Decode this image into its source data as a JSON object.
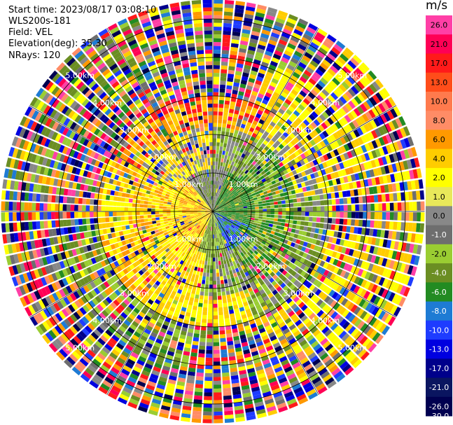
{
  "info": {
    "start_time": "Start time: 2023/08/17 03:08:10",
    "instrument": "WLS200s-181",
    "field": "Field: VEL",
    "elevation": "Elevation(deg): 35.30",
    "nrays": "NRays: 120"
  },
  "colorbar": {
    "unit": "m/s",
    "labels": [
      "26.0",
      "21.0",
      "17.0",
      "13.0",
      "10.0",
      "8.0",
      "6.0",
      "4.0",
      "2.0",
      "1.0",
      "0.0",
      "-1.0",
      "-2.0",
      "-4.0",
      "-6.0",
      "-8.0",
      "-10.0",
      "-13.0",
      "-17.0",
      "-21.0",
      "-26.0",
      "-30.0"
    ],
    "colors": [
      "#ff3fa6",
      "#ff0055",
      "#ff1a1a",
      "#ff4d1a",
      "#ff7a4d",
      "#ff8c66",
      "#ff9900",
      "#ffcc00",
      "#ffff00",
      "#e8e85a",
      "#888888",
      "#6e6e6e",
      "#9acd32",
      "#6b8e23",
      "#228b22",
      "#1e7bd4",
      "#1e3cff",
      "#0000e0",
      "#00008b",
      "#0a1560",
      "#000050"
    ]
  },
  "chart_data": {
    "type": "heatmap",
    "coordinate_system": "polar (PPI scan)",
    "field": "VEL",
    "units": "m/s",
    "nrays": 120,
    "elevation_deg": 35.3,
    "range_ring_labels": [
      "1.00km",
      "2.00km",
      "3.00km",
      "4.00km",
      "5.00km"
    ],
    "color_scale_boundaries": [
      26.0,
      21.0,
      17.0,
      13.0,
      10.0,
      8.0,
      6.0,
      4.0,
      2.0,
      1.0,
      0.0,
      -1.0,
      -2.0,
      -4.0,
      -6.0,
      -8.0,
      -10.0,
      -13.0,
      -17.0,
      -21.0,
      -26.0,
      -30.0
    ],
    "max_range_km": 5.5,
    "gates_per_ray": 55
  }
}
